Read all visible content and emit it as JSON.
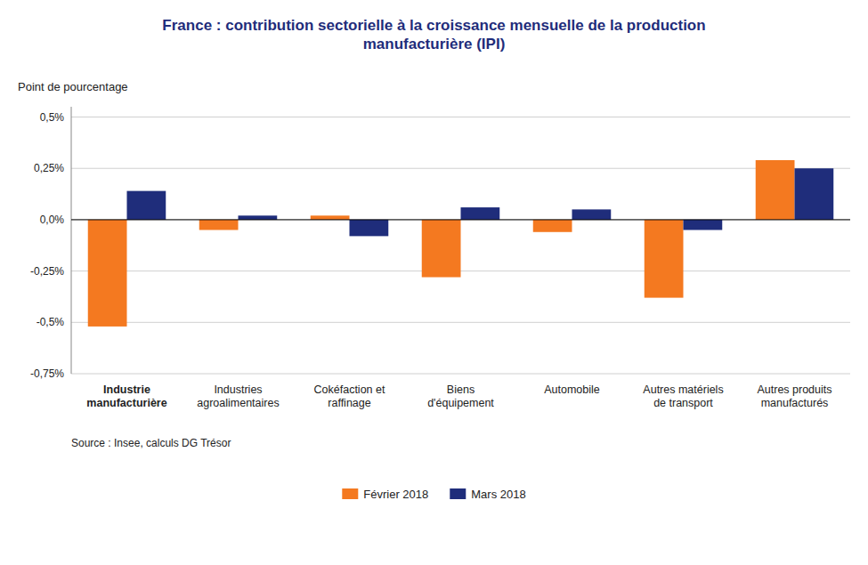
{
  "chart_data": {
    "type": "bar",
    "title": "France : contribution sectorielle à la croissance mensuelle de la production\nmanufacturière (IPI)",
    "ylabel": "Point de pourcentage",
    "annotations": [
      "Source : Insee, calculs DG Trésor"
    ],
    "categories": [
      "Industrie\nmanufacturière",
      "Industries\nagroalimentaires",
      "Cokéfaction et\nraffinage",
      "Biens\nd'équipement",
      "Automobile",
      "Autres matériels\nde transport",
      "Autres produits\nmanufacturés"
    ],
    "series": [
      {
        "name": "Février 2018",
        "color": "#F47920",
        "values": [
          -0.52,
          -0.05,
          0.02,
          -0.28,
          -0.06,
          -0.38,
          0.29
        ]
      },
      {
        "name": "Mars 2018",
        "color": "#1F2D7B",
        "values": [
          0.14,
          0.02,
          -0.08,
          0.06,
          0.05,
          -0.05,
          0.25
        ]
      }
    ],
    "ylim": [
      -0.75,
      0.55
    ],
    "yticks": [
      {
        "value": -0.75,
        "label": "-0,75%"
      },
      {
        "value": -0.5,
        "label": "-0,5%"
      },
      {
        "value": -0.25,
        "label": "-0,25%"
      },
      {
        "value": 0.0,
        "label": "0,0%"
      },
      {
        "value": 0.25,
        "label": "0,25%"
      },
      {
        "value": 0.5,
        "label": "0,5%"
      }
    ],
    "grid": true,
    "legend": "bottom"
  }
}
